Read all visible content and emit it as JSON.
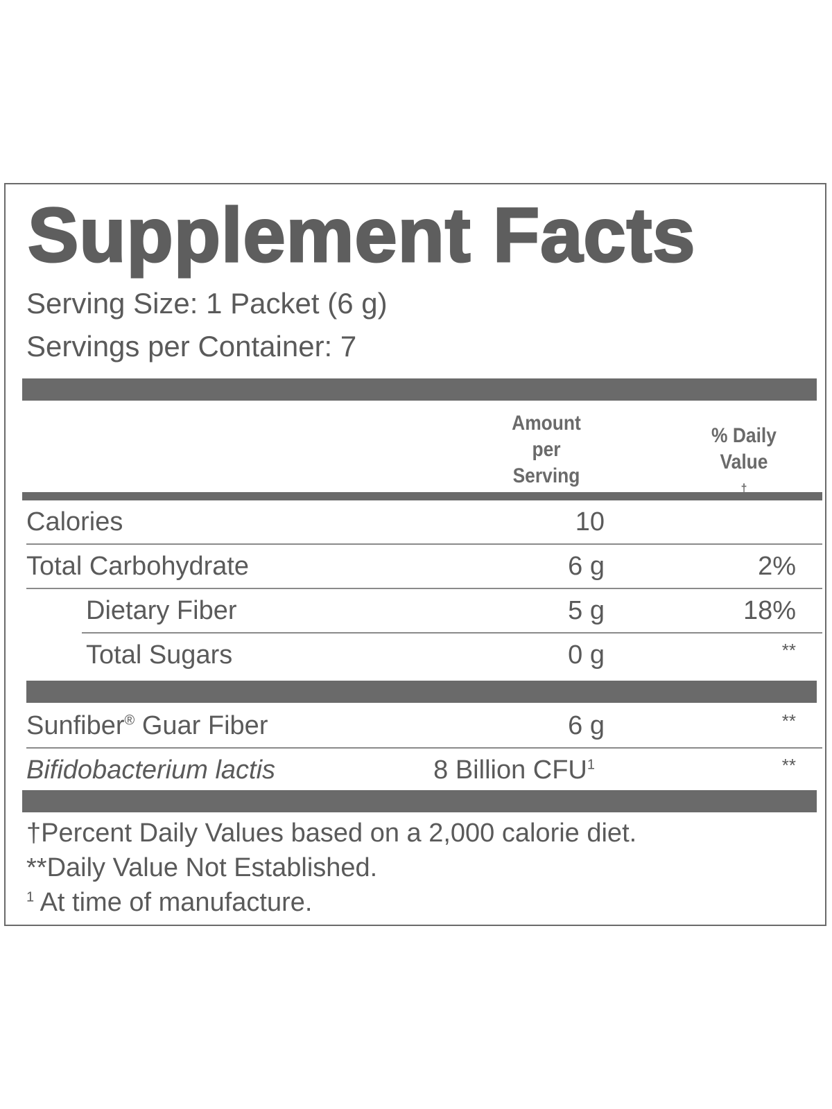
{
  "label": {
    "title": "Supplement Facts",
    "serving_size": "Serving Size: 1 Packet (6 g)",
    "servings_per_container": "Servings per Container: 7",
    "columns": {
      "amount_line1": "Amount",
      "amount_line2": "per",
      "amount_line3": "Serving",
      "dv_line1": "% Daily",
      "dv_line2": "Value",
      "dv_marker": "†"
    },
    "nutrients": [
      {
        "name": "Calories",
        "amount": "10",
        "dv": ""
      },
      {
        "name": "Total Carbohydrate",
        "amount": "6 g",
        "dv": "2%"
      },
      {
        "name": "Dietary Fiber",
        "amount": "5 g",
        "dv": "18%"
      },
      {
        "name": "Total Sugars",
        "amount": "0 g",
        "dv": "**"
      }
    ],
    "other": [
      {
        "name": "Sunfiber",
        "name_mark": "®",
        "name_rest": " Guar Fiber",
        "amount": "6 g",
        "dv": "**"
      },
      {
        "name": "Bifidobacterium lactis",
        "amount": "8 Billion CFU",
        "amount_mark": "1",
        "dv": "**"
      }
    ],
    "footnotes": {
      "dagger": "†Percent Daily Values based on a 2,000 calorie diet.",
      "stars": "**Daily Value Not Established.",
      "one_mark": "1",
      "one_text": " At time of manufacture."
    },
    "colors": {
      "text": "#5a5a5a",
      "bars": "#6a6a6a",
      "background": "#ffffff"
    }
  }
}
